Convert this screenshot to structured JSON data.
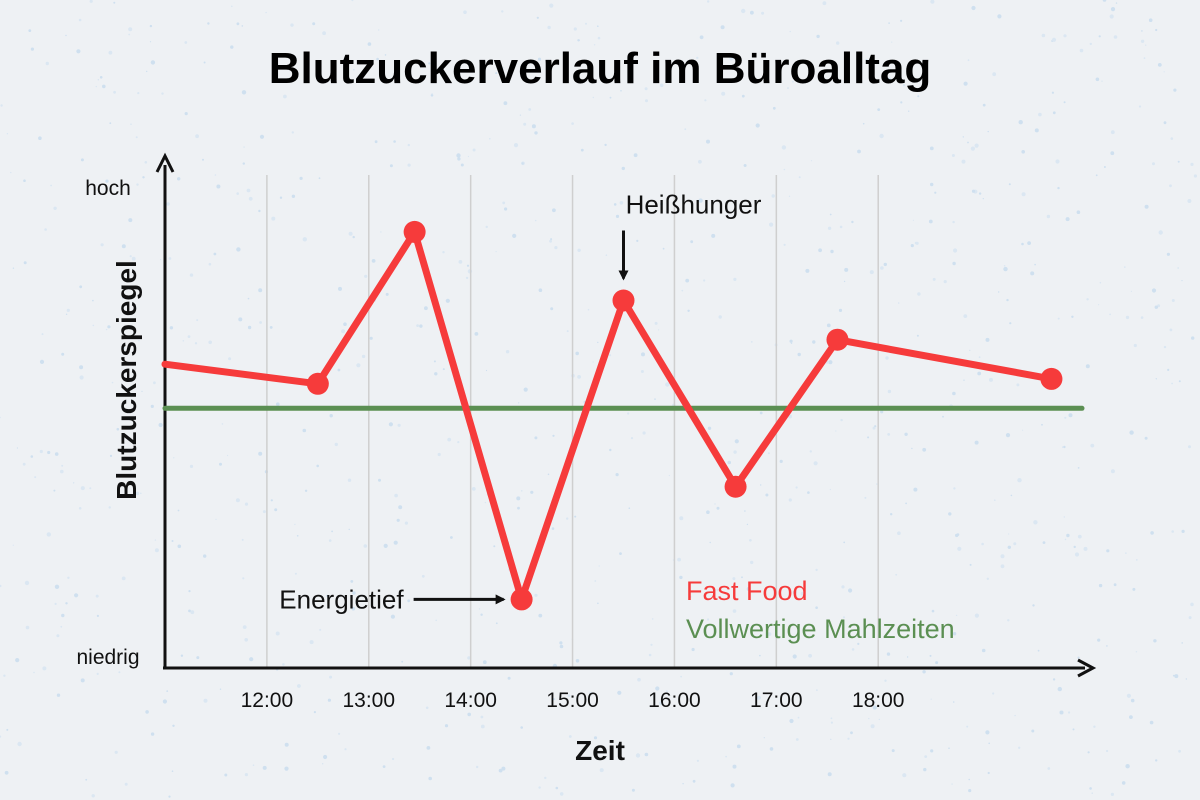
{
  "title": "Blutzuckerverlauf im Büroalltag",
  "chart_data": {
    "type": "line",
    "title": "Blutzuckerverlauf im Büroalltag",
    "xlabel": "Zeit",
    "ylabel": "Blutzuckerspiegel",
    "y_level_labels": {
      "high": "hoch",
      "low": "niedrig"
    },
    "x_ticks": [
      "12:00",
      "13:00",
      "14:00",
      "15:00",
      "16:00",
      "17:00",
      "18:00"
    ],
    "xlim": [
      11.0,
      20.0
    ],
    "ylim": [
      0,
      100
    ],
    "grid": true,
    "series": [
      {
        "name": "Fast Food",
        "color": "#f63b3b",
        "x": [
          11.0,
          12.5,
          13.45,
          14.5,
          15.5,
          16.6,
          17.6,
          19.7
        ],
        "y": [
          62,
          58,
          89,
          14,
          75,
          37,
          67,
          59
        ],
        "markers": [
          false,
          true,
          true,
          true,
          true,
          true,
          true,
          true
        ]
      },
      {
        "name": "Vollwertige Mahlzeiten",
        "color": "#5b8f52",
        "x": [
          11.0,
          20.0
        ],
        "y": [
          53,
          53
        ]
      }
    ],
    "annotations": [
      {
        "text": "Heißhunger",
        "x": 15.5,
        "y": 75,
        "arrow": "down"
      },
      {
        "text": "Energietief",
        "x": 14.5,
        "y": 14,
        "arrow": "right"
      }
    ],
    "legend": "inside-bottom-right"
  }
}
